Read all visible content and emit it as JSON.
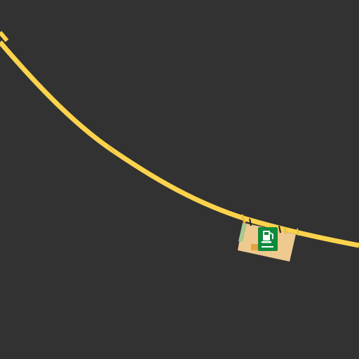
{
  "map": {
    "background_color": "#323232",
    "road": {
      "type": "highway",
      "color": "#fcd34d",
      "casing_color": "#d8b13a"
    },
    "poi": {
      "icon": "gas-station-icon",
      "icon_bg": "#0f8a3c",
      "icon_fg": "#ffffff",
      "area_color": "#eec990",
      "area_edge_color": "#a7c98f",
      "accent_color": "#e7a23c"
    },
    "markings_color": "#222222"
  }
}
